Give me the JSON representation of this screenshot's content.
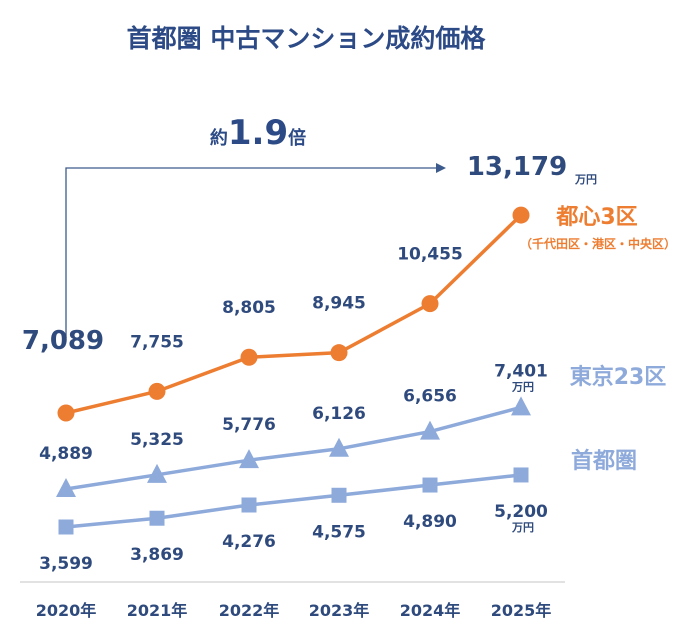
{
  "chart_data": {
    "type": "line",
    "title": "首都圏 中古マンション成約価格",
    "categories": [
      "2020年",
      "2021年",
      "2022年",
      "2023年",
      "2024年",
      "2025年"
    ],
    "unit": "万円",
    "series": [
      {
        "name": "都心3区",
        "subtitle": "（千代田区・港区・中央区）",
        "color": "#ed7d31",
        "marker": "circle",
        "values": [
          7089,
          7755,
          8805,
          8945,
          10455,
          13179
        ],
        "labels": [
          "7,089",
          "7,755",
          "8,805",
          "8,945",
          "10,455",
          "13,179"
        ]
      },
      {
        "name": "東京23区",
        "color": "#8eaadb",
        "marker": "triangle",
        "values": [
          4889,
          5325,
          5776,
          6126,
          6656,
          7401
        ],
        "labels": [
          "4,889",
          "5,325",
          "5,776",
          "6,126",
          "6,656",
          "7,401"
        ]
      },
      {
        "name": "首都圏",
        "color": "#8eaadb",
        "marker": "square",
        "values": [
          3599,
          3869,
          4276,
          4575,
          4890,
          5200
        ],
        "labels": [
          "3,599",
          "3,869",
          "4,276",
          "4,575",
          "4,890",
          "5,200"
        ]
      }
    ],
    "annotation": {
      "prefix": "約",
      "value": "1.9",
      "suffix": "倍"
    },
    "label_color": "#2f4a7c",
    "title_color": "#2c4a86",
    "grid": false,
    "legend": "right"
  }
}
